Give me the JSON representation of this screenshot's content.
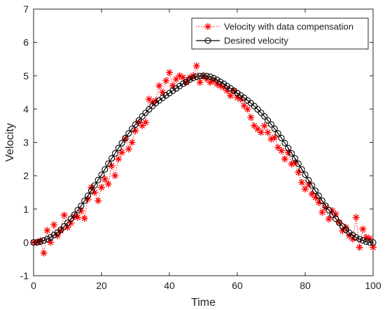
{
  "chart_data": {
    "type": "line",
    "xlabel": "Time",
    "ylabel": "Velocity",
    "xlim": [
      0,
      100
    ],
    "ylim": [
      -1,
      7
    ],
    "xticks": [
      0,
      20,
      40,
      60,
      80,
      100
    ],
    "yticks": [
      -1,
      0,
      1,
      2,
      3,
      4,
      5,
      6,
      7
    ],
    "grid": false,
    "legend_position": "top-right",
    "series": [
      {
        "name": "Velocity with data compensation",
        "color": "#ff0000",
        "marker": "asterisk",
        "line_style": "dotted",
        "x": [
          0,
          1,
          2,
          3,
          4,
          5,
          6,
          7,
          8,
          9,
          10,
          11,
          12,
          13,
          14,
          15,
          16,
          17,
          18,
          19,
          20,
          21,
          22,
          23,
          24,
          25,
          26,
          27,
          28,
          29,
          30,
          31,
          32,
          33,
          34,
          35,
          36,
          37,
          38,
          39,
          40,
          41,
          42,
          43,
          44,
          45,
          46,
          47,
          48,
          49,
          50,
          51,
          52,
          53,
          54,
          55,
          56,
          57,
          58,
          59,
          60,
          61,
          62,
          63,
          64,
          65,
          66,
          67,
          68,
          69,
          70,
          71,
          72,
          73,
          74,
          75,
          76,
          77,
          78,
          79,
          80,
          81,
          82,
          83,
          84,
          85,
          86,
          87,
          88,
          89,
          90,
          91,
          92,
          93,
          94,
          95,
          96,
          97,
          98,
          99,
          100
        ],
        "y": [
          0.0,
          0.0,
          0.05,
          -0.32,
          0.36,
          0.0,
          0.53,
          0.2,
          0.35,
          0.82,
          0.45,
          0.58,
          0.78,
          0.75,
          0.95,
          0.72,
          1.3,
          1.65,
          1.5,
          1.25,
          1.65,
          1.9,
          1.75,
          2.3,
          2.0,
          2.5,
          2.7,
          3.1,
          2.8,
          3.0,
          3.35,
          3.6,
          3.5,
          3.6,
          4.3,
          4.2,
          4.25,
          4.7,
          4.5,
          4.85,
          5.1,
          4.7,
          4.9,
          5.0,
          4.95,
          4.8,
          4.95,
          5.0,
          5.3,
          4.8,
          5.0,
          4.9,
          4.8,
          4.85,
          4.75,
          4.7,
          4.65,
          4.55,
          4.4,
          4.55,
          4.35,
          4.3,
          4.1,
          4.0,
          3.75,
          3.5,
          3.4,
          3.3,
          3.5,
          3.3,
          3.1,
          3.15,
          2.85,
          2.75,
          2.5,
          2.7,
          2.35,
          2.4,
          2.1,
          1.8,
          1.6,
          1.75,
          1.45,
          1.35,
          1.2,
          0.9,
          1.05,
          0.7,
          0.95,
          0.85,
          0.6,
          0.35,
          0.45,
          0.2,
          0.1,
          0.75,
          -0.15,
          0.4,
          0.15,
          0.12,
          -0.15
        ]
      },
      {
        "name": "Desired velocity",
        "color": "#000000",
        "marker": "circle",
        "line_style": "solid",
        "x": [
          0,
          1,
          2,
          3,
          4,
          5,
          6,
          7,
          8,
          9,
          10,
          11,
          12,
          13,
          14,
          15,
          16,
          17,
          18,
          19,
          20,
          21,
          22,
          23,
          24,
          25,
          26,
          27,
          28,
          29,
          30,
          31,
          32,
          33,
          34,
          35,
          36,
          37,
          38,
          39,
          40,
          41,
          42,
          43,
          44,
          45,
          46,
          47,
          48,
          49,
          50,
          51,
          52,
          53,
          54,
          55,
          56,
          57,
          58,
          59,
          60,
          61,
          62,
          63,
          64,
          65,
          66,
          67,
          68,
          69,
          70,
          71,
          72,
          73,
          74,
          75,
          76,
          77,
          78,
          79,
          80,
          81,
          82,
          83,
          84,
          85,
          86,
          87,
          88,
          89,
          90,
          91,
          92,
          93,
          94,
          95,
          96,
          97,
          98,
          99,
          100
        ],
        "y": [
          0.0,
          0.0,
          0.02,
          0.06,
          0.1,
          0.15,
          0.22,
          0.29,
          0.38,
          0.48,
          0.59,
          0.71,
          0.83,
          0.97,
          1.1,
          1.25,
          1.4,
          1.55,
          1.71,
          1.87,
          2.03,
          2.19,
          2.36,
          2.52,
          2.67,
          2.83,
          2.98,
          3.13,
          3.27,
          3.41,
          3.54,
          3.66,
          3.78,
          3.89,
          3.99,
          4.09,
          4.18,
          4.26,
          4.34,
          4.41,
          4.48,
          4.55,
          4.62,
          4.69,
          4.76,
          4.82,
          4.88,
          4.93,
          4.97,
          4.99,
          5.0,
          4.99,
          4.97,
          4.93,
          4.88,
          4.82,
          4.76,
          4.69,
          4.62,
          4.55,
          4.48,
          4.41,
          4.34,
          4.26,
          4.18,
          4.09,
          3.99,
          3.89,
          3.78,
          3.66,
          3.54,
          3.41,
          3.27,
          3.13,
          2.98,
          2.83,
          2.67,
          2.52,
          2.36,
          2.19,
          2.03,
          1.87,
          1.71,
          1.55,
          1.4,
          1.25,
          1.1,
          0.97,
          0.83,
          0.71,
          0.59,
          0.48,
          0.38,
          0.29,
          0.22,
          0.15,
          0.1,
          0.06,
          0.02,
          0.0,
          0.0
        ]
      }
    ]
  }
}
